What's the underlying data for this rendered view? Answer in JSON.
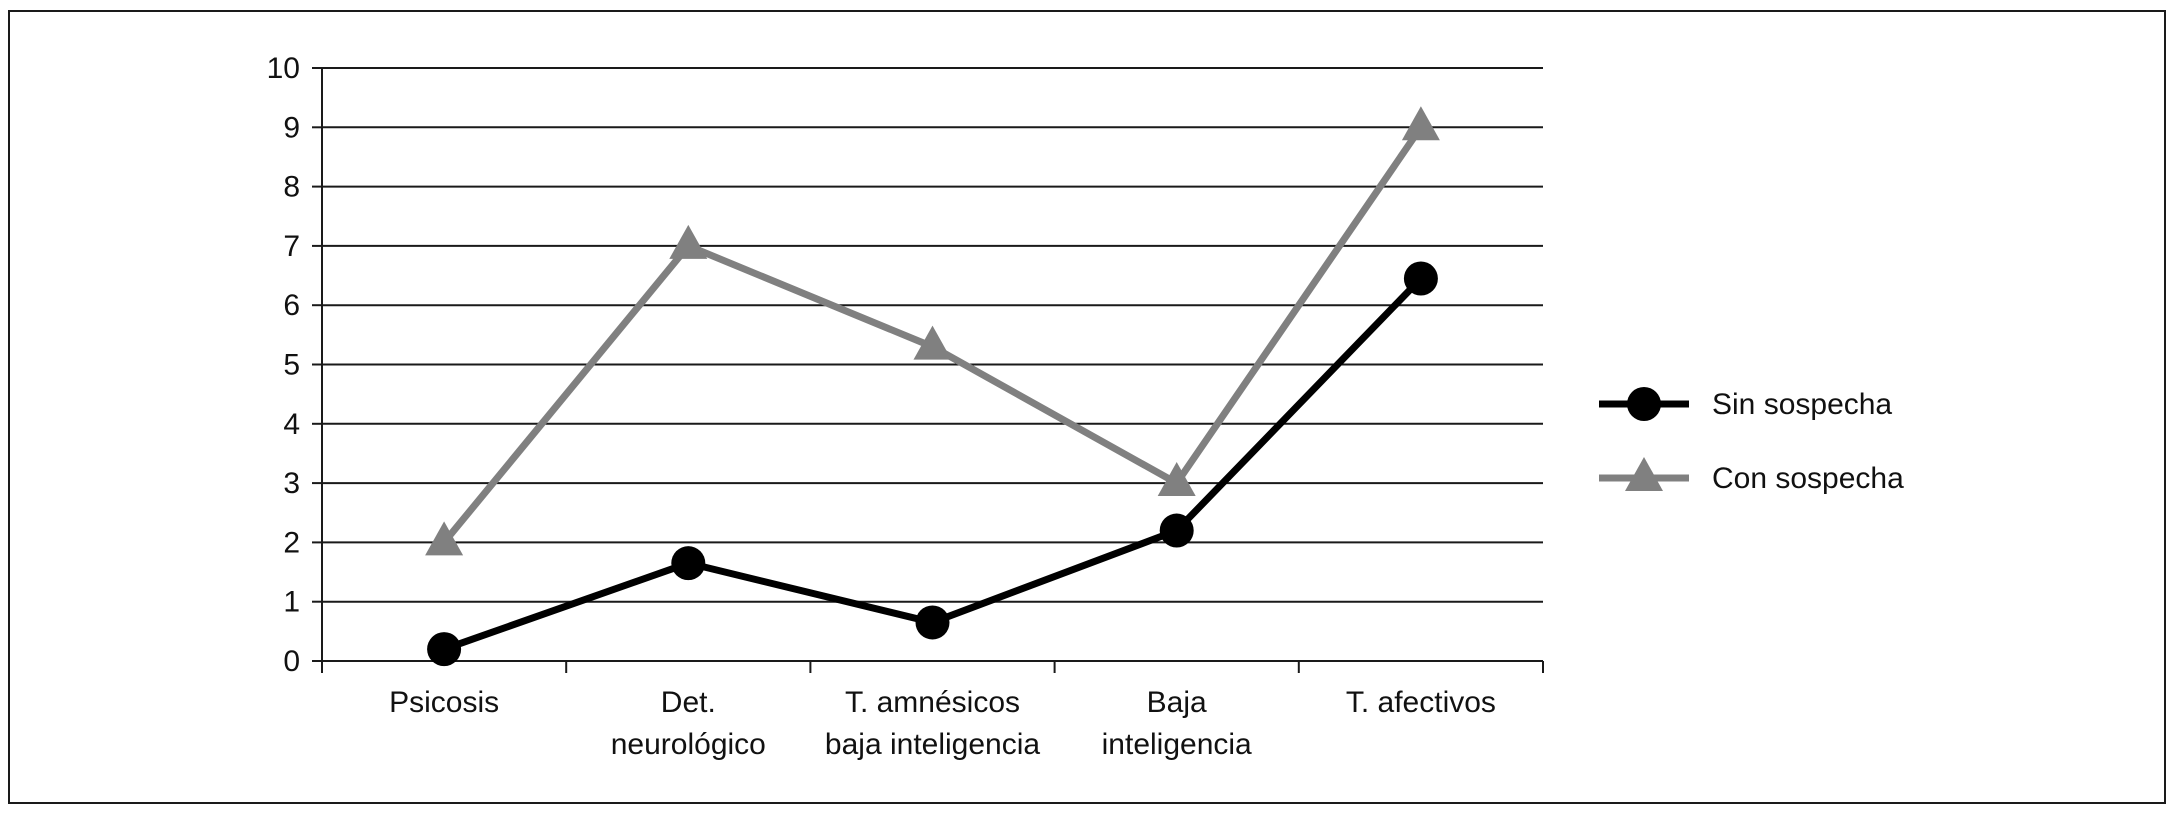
{
  "chart_data": {
    "type": "line",
    "categories": [
      [
        "Psicosis"
      ],
      [
        "Det.",
        "neurológico"
      ],
      [
        "T. amnésicos",
        "baja inteligencia"
      ],
      [
        "Baja",
        "inteligencia"
      ],
      [
        "T. afectivos"
      ]
    ],
    "y_ticks": [
      "0",
      "1",
      "2",
      "3",
      "4",
      "5",
      "6",
      "7",
      "8",
      "9",
      "10"
    ],
    "ylim": [
      0,
      10
    ],
    "grid": true,
    "legend_position": "right",
    "series": [
      {
        "name": "Sin sospecha",
        "values": [
          0.2,
          1.65,
          0.65,
          2.2,
          6.45
        ],
        "color": "#000000",
        "marker": "circle"
      },
      {
        "name": "Con sospecha",
        "values": [
          2.0,
          7.0,
          5.3,
          3.0,
          9.0
        ],
        "color": "#808080",
        "marker": "triangle"
      }
    ]
  }
}
